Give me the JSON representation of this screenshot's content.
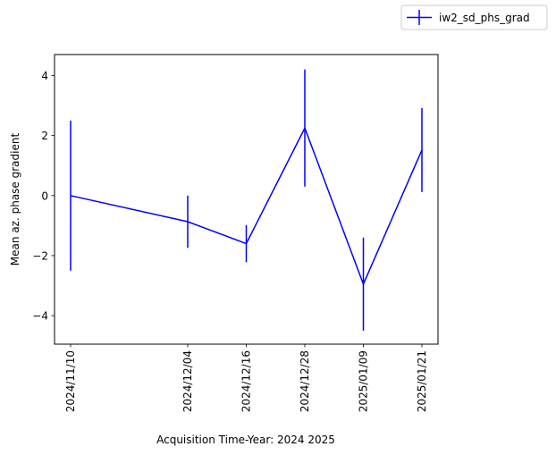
{
  "chart_data": {
    "type": "line",
    "error_bars": true,
    "xlabel": "Acquisition Time-Year: 2024 2025",
    "ylabel": "Mean az. phase gradient",
    "x": [
      "2024/11/10",
      "2024/12/04",
      "2024/12/16",
      "2024/12/28",
      "2025/01/09",
      "2025/01/21"
    ],
    "xticks": [
      "2024/11/10",
      "2024/12/04",
      "2024/12/16",
      "2024/12/28",
      "2025/01/09",
      "2025/01/21"
    ],
    "ylim": [
      -4.95,
      4.7
    ],
    "yticks": [
      4,
      2,
      0,
      -2,
      -4
    ],
    "ytick_labels": [
      "4",
      "2",
      "0",
      "−2",
      "−4"
    ],
    "series": [
      {
        "name": "iw2_sd_phs_grad",
        "color": "#0000ff",
        "values": [
          0.0,
          -0.87,
          -1.6,
          2.25,
          -2.95,
          1.52
        ],
        "errors": [
          2.5,
          0.87,
          0.62,
          1.95,
          1.55,
          1.4
        ]
      }
    ],
    "legend": {
      "placement": "top-right, outside axes",
      "label": "iw2_sd_phs_grad"
    },
    "grid": false
  }
}
